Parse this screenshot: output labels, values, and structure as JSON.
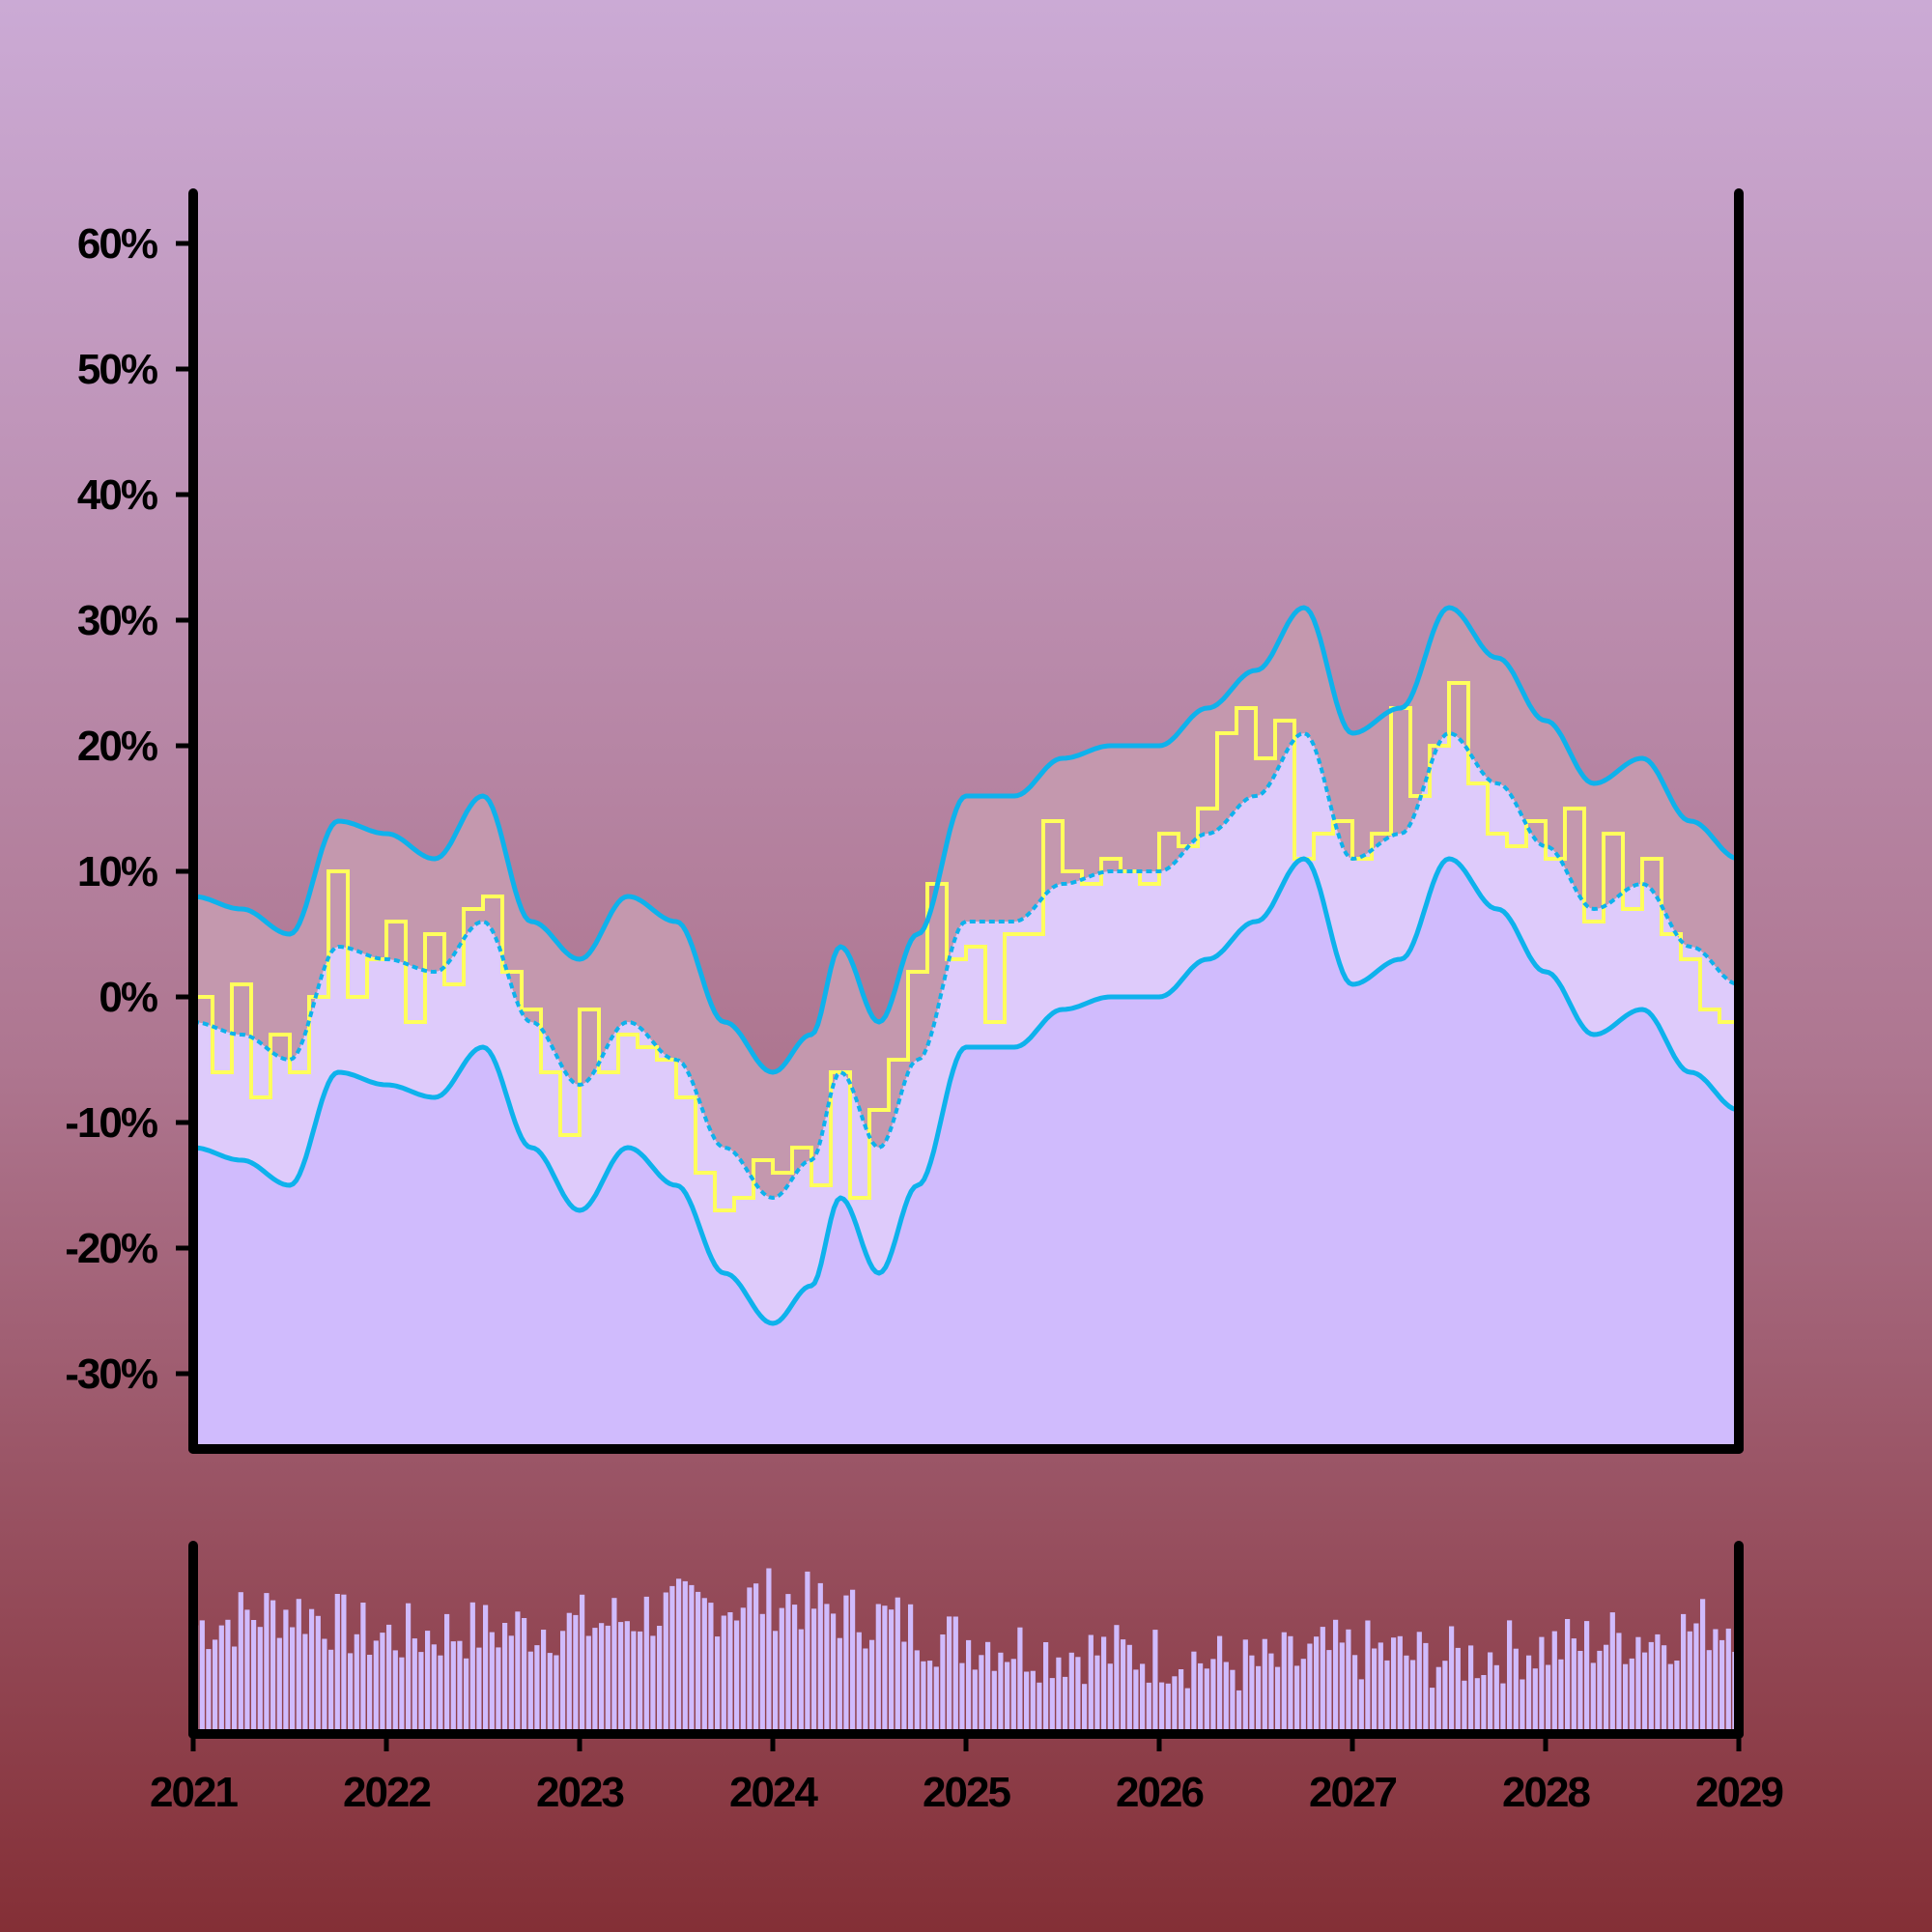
{
  "colors": {
    "background_top": "#CBAAD5",
    "background_mid": "#AE7690",
    "background_bottom": "#842F36",
    "band_upper_fill": "#C498AE",
    "band_lower_fill": "#DECBFB",
    "area_fill": "#D0BBFD",
    "price_line": "#FFFF5C",
    "band_line": "#0EB2EC",
    "axis": "#000000",
    "volume_fill": "#D0BBFD"
  },
  "chart_data": {
    "type": "line",
    "subtype": "bollinger-bands-with-volume",
    "title": "",
    "xlabel": "",
    "ylabel": "",
    "x_range": [
      2021,
      2029
    ],
    "ylim": [
      -36,
      64
    ],
    "x_ticks": [
      "2021",
      "2022",
      "2023",
      "2024",
      "2025",
      "2026",
      "2027",
      "2028",
      "2029"
    ],
    "y_ticks": [
      "-30%",
      "-20%",
      "-10%",
      "0%",
      "10%",
      "20%",
      "30%",
      "40%",
      "50%",
      "60%"
    ],
    "y_tick_values": [
      -30,
      -20,
      -10,
      0,
      10,
      20,
      30,
      40,
      50,
      60
    ],
    "grid": false,
    "legend": "none",
    "series": [
      {
        "role": "middle-band",
        "x": [
          2021.0,
          2021.25,
          2021.5,
          2021.75,
          2022.0,
          2022.25,
          2022.5,
          2022.75,
          2023.0,
          2023.25,
          2023.5,
          2023.75,
          2024.0,
          2024.2,
          2024.35,
          2024.55,
          2024.75,
          2025.0,
          2025.25,
          2025.5,
          2025.75,
          2026.0,
          2026.25,
          2026.5,
          2026.75,
          2027.0,
          2027.25,
          2027.5,
          2027.75,
          2028.0,
          2028.25,
          2028.5,
          2028.75,
          2029.0
        ],
        "y": [
          -2,
          -3,
          -5,
          4,
          3,
          2,
          6,
          -2,
          -7,
          -2,
          -5,
          -12,
          -16,
          -13,
          -6,
          -12,
          -5,
          6,
          6,
          9,
          10,
          10,
          13,
          16,
          21,
          11,
          13,
          21,
          17,
          12,
          7,
          9,
          4,
          1
        ]
      },
      {
        "role": "upper-band",
        "x": [
          2021.0,
          2021.25,
          2021.5,
          2021.75,
          2022.0,
          2022.25,
          2022.5,
          2022.75,
          2023.0,
          2023.25,
          2023.5,
          2023.75,
          2024.0,
          2024.2,
          2024.35,
          2024.55,
          2024.75,
          2025.0,
          2025.25,
          2025.5,
          2025.75,
          2026.0,
          2026.25,
          2026.5,
          2026.75,
          2027.0,
          2027.25,
          2027.5,
          2027.75,
          2028.0,
          2028.25,
          2028.5,
          2028.75,
          2029.0
        ],
        "y": [
          8,
          7,
          5,
          14,
          13,
          11,
          16,
          6,
          3,
          8,
          6,
          -2,
          -6,
          -3,
          4,
          -2,
          5,
          16,
          16,
          19,
          20,
          20,
          23,
          26,
          31,
          21,
          23,
          31,
          27,
          22,
          17,
          19,
          14,
          11
        ]
      },
      {
        "role": "lower-band",
        "x": [
          2021.0,
          2021.25,
          2021.5,
          2021.75,
          2022.0,
          2022.25,
          2022.5,
          2022.75,
          2023.0,
          2023.25,
          2023.5,
          2023.75,
          2024.0,
          2024.2,
          2024.35,
          2024.55,
          2024.75,
          2025.0,
          2025.25,
          2025.5,
          2025.75,
          2026.0,
          2026.25,
          2026.5,
          2026.75,
          2027.0,
          2027.25,
          2027.5,
          2027.75,
          2028.0,
          2028.25,
          2028.5,
          2028.75,
          2029.0
        ],
        "y": [
          -12,
          -13,
          -15,
          -6,
          -7,
          -8,
          -4,
          -12,
          -17,
          -12,
          -15,
          -22,
          -26,
          -23,
          -16,
          -22,
          -15,
          -4,
          -4,
          -1,
          0,
          0,
          3,
          6,
          11,
          1,
          3,
          11,
          7,
          2,
          -3,
          -1,
          -6,
          -9
        ]
      },
      {
        "role": "price",
        "x": [
          2021.0,
          2021.1,
          2021.2,
          2021.3,
          2021.4,
          2021.5,
          2021.6,
          2021.7,
          2021.8,
          2021.9,
          2022.0,
          2022.1,
          2022.2,
          2022.3,
          2022.4,
          2022.5,
          2022.6,
          2022.7,
          2022.8,
          2022.9,
          2023.0,
          2023.1,
          2023.2,
          2023.3,
          2023.4,
          2023.5,
          2023.6,
          2023.7,
          2023.8,
          2023.9,
          2024.0,
          2024.1,
          2024.2,
          2024.3,
          2024.4,
          2024.5,
          2024.6,
          2024.7,
          2024.8,
          2024.9,
          2025.0,
          2025.1,
          2025.2,
          2025.3,
          2025.4,
          2025.5,
          2025.6,
          2025.7,
          2025.8,
          2025.9,
          2026.0,
          2026.1,
          2026.2,
          2026.3,
          2026.4,
          2026.5,
          2026.6,
          2026.7,
          2026.8,
          2026.9,
          2027.0,
          2027.1,
          2027.2,
          2027.3,
          2027.4,
          2027.5,
          2027.6,
          2027.7,
          2027.8,
          2027.9,
          2028.0,
          2028.1,
          2028.2,
          2028.3,
          2028.4,
          2028.5,
          2028.6,
          2028.7,
          2028.8,
          2028.9,
          2029.0
        ],
        "y": [
          0,
          -6,
          1,
          -8,
          -3,
          -6,
          0,
          10,
          0,
          3,
          6,
          -2,
          5,
          1,
          7,
          8,
          2,
          -1,
          -6,
          -11,
          -1,
          -6,
          -3,
          -4,
          -5,
          -8,
          -14,
          -17,
          -16,
          -13,
          -14,
          -12,
          -15,
          -6,
          -16,
          -9,
          -5,
          2,
          9,
          3,
          4,
          -2,
          5,
          5,
          14,
          10,
          9,
          11,
          10,
          9,
          13,
          12,
          15,
          21,
          23,
          19,
          22,
          11,
          13,
          14,
          11,
          13,
          23,
          16,
          20,
          25,
          17,
          13,
          12,
          14,
          11,
          15,
          6,
          13,
          7,
          11,
          5,
          3,
          -1,
          -2,
          5
        ]
      }
    ],
    "volume": {
      "x_range": [
        2021,
        2029
      ],
      "seed": 7,
      "count": 240,
      "envelope": [
        [
          2021.0,
          0.58
        ],
        [
          2021.5,
          0.66
        ],
        [
          2022.0,
          0.52
        ],
        [
          2022.5,
          0.55
        ],
        [
          2023.0,
          0.58
        ],
        [
          2023.5,
          0.66
        ],
        [
          2024.0,
          0.72
        ],
        [
          2024.5,
          0.62
        ],
        [
          2025.0,
          0.5
        ],
        [
          2025.5,
          0.44
        ],
        [
          2026.0,
          0.42
        ],
        [
          2026.5,
          0.36
        ],
        [
          2027.0,
          0.44
        ],
        [
          2027.5,
          0.4
        ],
        [
          2028.0,
          0.46
        ],
        [
          2028.5,
          0.52
        ],
        [
          2029.0,
          0.6
        ]
      ]
    }
  }
}
